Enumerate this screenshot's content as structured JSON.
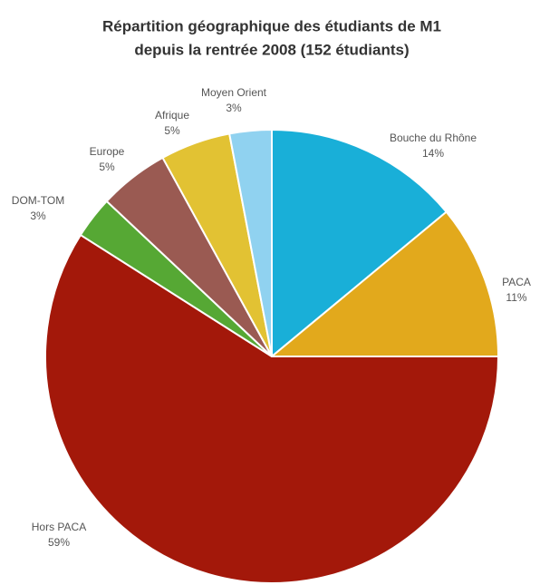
{
  "chart_data": {
    "type": "pie",
    "title": [
      "Répartition géographique des étudiants de M1",
      "depuis la rentrée 2008 (152 étudiants)"
    ],
    "categories": [
      "Bouche du Rhône",
      "PACA",
      "Hors PACA",
      "DOM-TOM",
      "Europe",
      "Afrique",
      "Moyen Orient"
    ],
    "values": [
      14,
      11,
      59,
      3,
      5,
      5,
      3
    ],
    "value_labels": [
      "14%",
      "11%",
      "59%",
      "3%",
      "5%",
      "5%",
      "3%"
    ],
    "colors": [
      "#19afd8",
      "#e2a91c",
      "#a3180a",
      "#56a834",
      "#9a5a52",
      "#e2c233",
      "#90d2f0"
    ]
  }
}
